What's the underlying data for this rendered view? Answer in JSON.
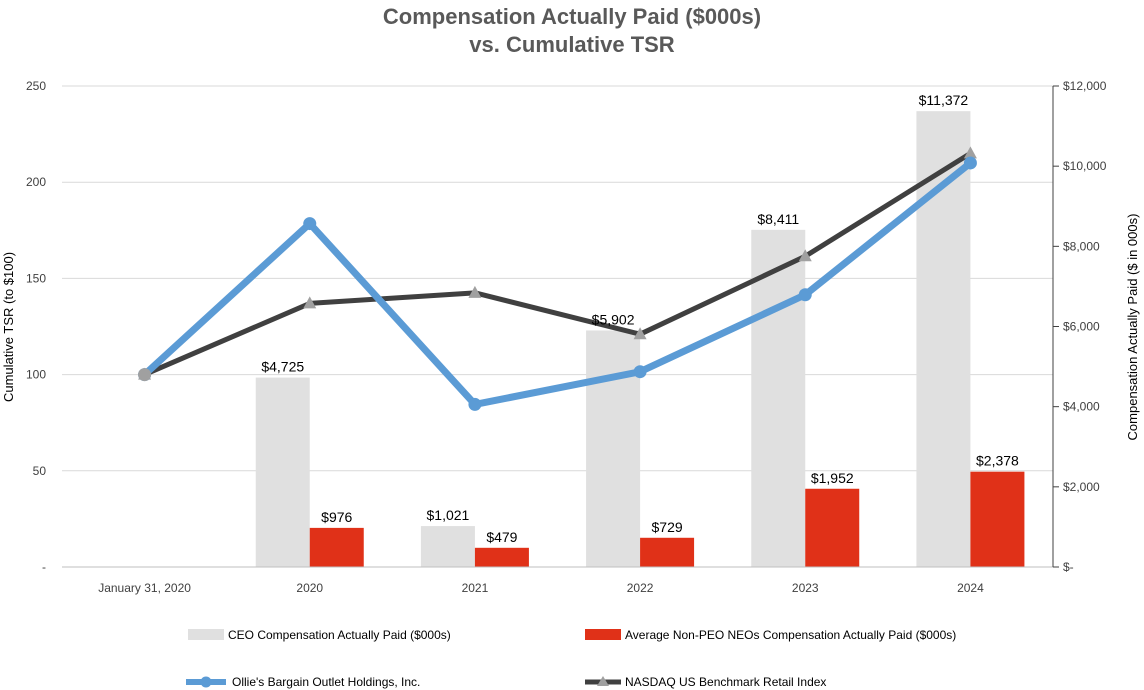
{
  "chart_data": {
    "type": "bar",
    "title_line1": "Compensation Actually Paid ($000s)",
    "title_line2": "vs. Cumulative TSR",
    "categories": [
      "January 31, 2020",
      "2020",
      "2021",
      "2022",
      "2023",
      "2024"
    ],
    "y_left": {
      "label": "Cumulative TSR (to $100)",
      "range": [
        0,
        250
      ],
      "ticks": [
        {
          "value": 0,
          "label": "-"
        },
        {
          "value": 50,
          "label": "50"
        },
        {
          "value": 100,
          "label": "100"
        },
        {
          "value": 150,
          "label": "150"
        },
        {
          "value": 200,
          "label": "200"
        },
        {
          "value": 250,
          "label": "250"
        }
      ]
    },
    "y_right": {
      "label": "Compensation Actually Paid ($ in 000s)",
      "range": [
        0,
        12000
      ],
      "ticks": [
        {
          "value": 0,
          "label": "$-"
        },
        {
          "value": 2000,
          "label": "$2,000"
        },
        {
          "value": 4000,
          "label": "$4,000"
        },
        {
          "value": 6000,
          "label": "$6,000"
        },
        {
          "value": 8000,
          "label": "$8,000"
        },
        {
          "value": 10000,
          "label": "$10,000"
        },
        {
          "value": 12000,
          "label": "$12,000"
        }
      ]
    },
    "bar_series": [
      {
        "name": "CEO Compensation Actually Paid ($000s)",
        "color": "#e0e0e0",
        "values": [
          null,
          4725,
          1021,
          5902,
          8411,
          11372
        ],
        "labels": [
          "",
          "$4,725",
          "$1,021",
          "$5,902",
          "$8,411",
          "$11,372"
        ]
      },
      {
        "name": "Average Non-PEO NEOs Compensation Actually Paid ($000s)",
        "color": "#e03118",
        "values": [
          null,
          976,
          479,
          729,
          1952,
          2378
        ],
        "labels": [
          "",
          "$976",
          "$479",
          "$729",
          "$1,952",
          "$2,378"
        ]
      }
    ],
    "line_series": [
      {
        "name": "Ollie's Bargain Outlet Holdings, Inc.",
        "color": "#5b9bd5",
        "marker": "circle",
        "values": [
          100,
          178.5,
          84.5,
          101.5,
          141.5,
          210
        ]
      },
      {
        "name": "NASDAQ US Benchmark Retail Index",
        "color": "#404040",
        "marker": "triangle",
        "marker_color": "#a0a0a0",
        "values": [
          100,
          137,
          142.5,
          121,
          161.5,
          215
        ]
      }
    ],
    "legend_position": "bottom"
  }
}
